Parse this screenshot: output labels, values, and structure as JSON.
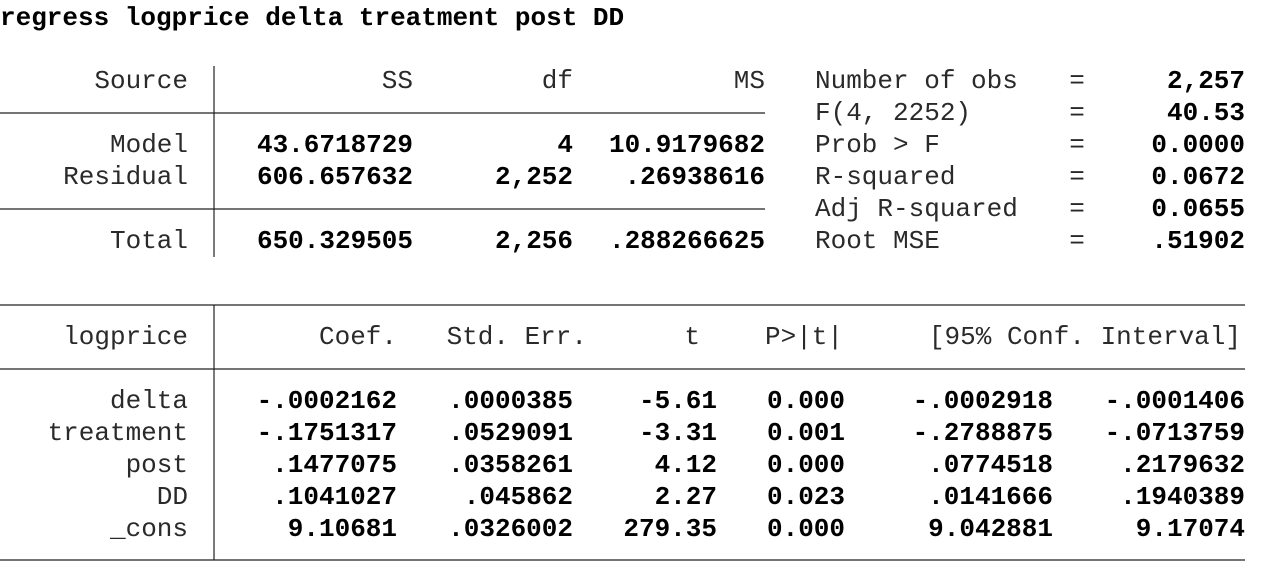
{
  "command": "regress logprice delta treatment post DD",
  "anova": {
    "header": [
      "Source",
      "SS",
      "df",
      "MS"
    ],
    "rows": [
      [
        "Model",
        "43.6718729",
        "4",
        "10.9179682"
      ],
      [
        "Residual",
        "606.657632",
        "2,252",
        ".26938616"
      ]
    ],
    "total": [
      "Total",
      "650.329505",
      "2,256",
      ".288266625"
    ]
  },
  "stats": [
    {
      "label": "Number of obs",
      "eq": "=",
      "value": "2,257"
    },
    {
      "label": "F(4, 2252)",
      "eq": "=",
      "value": "40.53"
    },
    {
      "label": "Prob > F",
      "eq": "=",
      "value": "0.0000"
    },
    {
      "label": "R-squared",
      "eq": "=",
      "value": "0.0672"
    },
    {
      "label": "Adj R-squared",
      "eq": "=",
      "value": "0.0655"
    },
    {
      "label": "Root MSE",
      "eq": "=",
      "value": ".51902"
    }
  ],
  "coef": {
    "header": [
      "logprice",
      "Coef.",
      "Std. Err.",
      "t",
      "P>|t|",
      "[95% Conf. Interval]"
    ],
    "rows": [
      [
        "delta",
        "-.0002162",
        ".0000385",
        "-5.61",
        "0.000",
        "-.0002918",
        "-.0001406"
      ],
      [
        "treatment",
        "-.1751317",
        ".0529091",
        "-3.31",
        "0.001",
        "-.2788875",
        "-.0713759"
      ],
      [
        "post",
        ".1477075",
        ".0358261",
        "4.12",
        "0.000",
        ".0774518",
        ".2179632"
      ],
      [
        "DD",
        ".1041027",
        ".045862",
        "2.27",
        "0.023",
        ".0141666",
        ".1940389"
      ],
      [
        "_cons",
        "9.10681",
        ".0326002",
        "279.35",
        "0.000",
        "9.042881",
        "9.17074"
      ]
    ]
  }
}
